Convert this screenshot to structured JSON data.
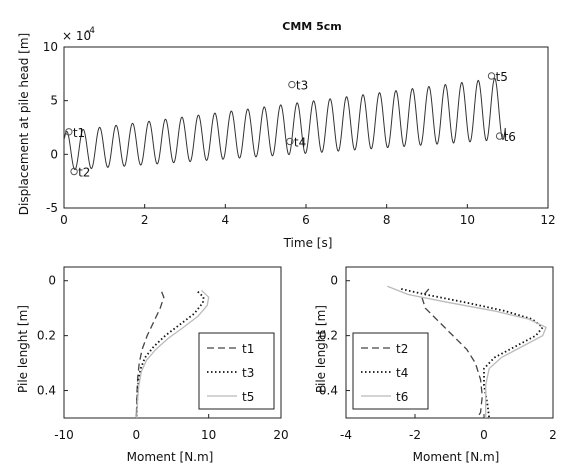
{
  "chart_data": [
    {
      "type": "line",
      "title": "CMM 5cm",
      "xlabel": "Time [s]",
      "ylabel": "Displacement at pile head [m]",
      "y_exponent_label": "× 10",
      "y_exponent_power": "-4",
      "xlim": [
        0,
        12
      ],
      "ylim": [
        -5,
        10
      ],
      "xticks": [
        0,
        2,
        4,
        6,
        8,
        10,
        12
      ],
      "yticks": [
        -5,
        0,
        5,
        10
      ],
      "grid": false,
      "signal": {
        "frequency_hz": 2.45,
        "amplitude_start": 1.8,
        "amplitude_end": 2.9,
        "mean_start": 0.3,
        "mean_end": 4.3,
        "start": [
          0,
          2.1
        ],
        "end": [
          10.95,
          1.6
        ]
      },
      "annotations": [
        {
          "label": "t1",
          "x": 0.12,
          "y": 2.1
        },
        {
          "label": "t2",
          "x": 0.25,
          "y": -1.6
        },
        {
          "label": "t3",
          "x": 5.65,
          "y": 6.5
        },
        {
          "label": "t4",
          "x": 5.6,
          "y": 1.2
        },
        {
          "label": "t5",
          "x": 10.6,
          "y": 7.3
        },
        {
          "label": "t6",
          "x": 10.8,
          "y": 1.7
        }
      ]
    },
    {
      "type": "line",
      "xlabel": "Moment [N.m]",
      "ylabel": "Pile lenght [m]",
      "xlim": [
        -10,
        20
      ],
      "ylim": [
        0.5,
        -0.05
      ],
      "xticks": [
        -10,
        0,
        10,
        20
      ],
      "yticks": [
        0,
        0.2,
        0.4
      ],
      "legend": "bottom-right",
      "series": [
        {
          "name": "t1",
          "style": "dashed",
          "color": "#444444",
          "points": [
            [
              3.5,
              0.04
            ],
            [
              3.8,
              0.06
            ],
            [
              3.3,
              0.1
            ],
            [
              2.4,
              0.15
            ],
            [
              1.5,
              0.2
            ],
            [
              0.8,
              0.25
            ],
            [
              0.4,
              0.3
            ],
            [
              0.2,
              0.35
            ],
            [
              0.1,
              0.4
            ],
            [
              0.05,
              0.45
            ],
            [
              0.0,
              0.5
            ]
          ]
        },
        {
          "name": "t3",
          "style": "dotted",
          "color": "#111111",
          "points": [
            [
              8.5,
              0.04
            ],
            [
              9.3,
              0.06
            ],
            [
              9.2,
              0.08
            ],
            [
              8.0,
              0.12
            ],
            [
              6.0,
              0.16
            ],
            [
              4.0,
              0.2
            ],
            [
              2.4,
              0.24
            ],
            [
              1.2,
              0.28
            ],
            [
              0.6,
              0.32
            ],
            [
              0.3,
              0.36
            ],
            [
              0.15,
              0.42
            ],
            [
              0.05,
              0.5
            ]
          ]
        },
        {
          "name": "t5",
          "style": "solid",
          "color": "#bbbbbb",
          "points": [
            [
              9.0,
              0.035
            ],
            [
              10.0,
              0.06
            ],
            [
              9.8,
              0.09
            ],
            [
              8.5,
              0.13
            ],
            [
              6.5,
              0.17
            ],
            [
              4.4,
              0.21
            ],
            [
              2.7,
              0.25
            ],
            [
              1.4,
              0.29
            ],
            [
              0.7,
              0.33
            ],
            [
              0.35,
              0.38
            ],
            [
              0.15,
              0.44
            ],
            [
              0.05,
              0.5
            ]
          ]
        }
      ]
    },
    {
      "type": "line",
      "xlabel": "Moment [N.m]",
      "ylabel": "Pile lenght [m]",
      "xlim": [
        -4,
        2
      ],
      "ylim": [
        0.5,
        -0.05
      ],
      "xticks": [
        -4,
        -2,
        0,
        2
      ],
      "yticks": [
        0,
        0.2,
        0.4
      ],
      "legend": "bottom-left",
      "series": [
        {
          "name": "t2",
          "style": "dashed",
          "color": "#444444",
          "points": [
            [
              -1.6,
              0.03
            ],
            [
              -1.8,
              0.06
            ],
            [
              -1.7,
              0.1
            ],
            [
              -1.3,
              0.15
            ],
            [
              -0.9,
              0.2
            ],
            [
              -0.5,
              0.25
            ],
            [
              -0.25,
              0.3
            ],
            [
              -0.1,
              0.36
            ],
            [
              -0.05,
              0.42
            ],
            [
              -0.1,
              0.48
            ],
            [
              -0.2,
              0.5
            ]
          ]
        },
        {
          "name": "t4",
          "style": "dotted",
          "color": "#111111",
          "points": [
            [
              -2.4,
              0.03
            ],
            [
              -1.7,
              0.05
            ],
            [
              -0.5,
              0.08
            ],
            [
              0.6,
              0.11
            ],
            [
              1.4,
              0.14
            ],
            [
              1.7,
              0.17
            ],
            [
              1.5,
              0.2
            ],
            [
              0.9,
              0.24
            ],
            [
              0.3,
              0.28
            ],
            [
              0.0,
              0.32
            ],
            [
              0.0,
              0.38
            ],
            [
              0.1,
              0.45
            ],
            [
              0.15,
              0.5
            ]
          ]
        },
        {
          "name": "t6",
          "style": "solid",
          "color": "#bbbbbb",
          "points": [
            [
              -2.8,
              0.02
            ],
            [
              -2.2,
              0.05
            ],
            [
              -1.0,
              0.08
            ],
            [
              0.3,
              0.11
            ],
            [
              1.3,
              0.14
            ],
            [
              1.8,
              0.17
            ],
            [
              1.7,
              0.2
            ],
            [
              1.1,
              0.24
            ],
            [
              0.5,
              0.28
            ],
            [
              0.15,
              0.32
            ],
            [
              0.05,
              0.38
            ],
            [
              0.05,
              0.45
            ],
            [
              0.05,
              0.5
            ]
          ]
        }
      ]
    }
  ]
}
